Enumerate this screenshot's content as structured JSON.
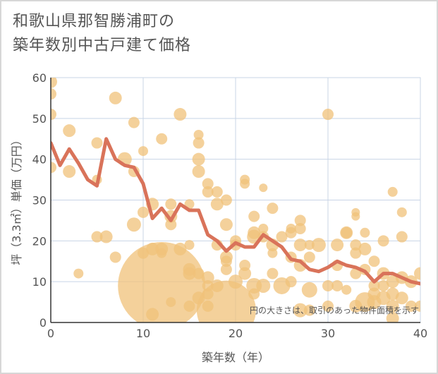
{
  "title": {
    "line1": "和歌山県那智勝浦町の",
    "line2": "築年数別中古戸建て価格"
  },
  "chart_data": {
    "type": "scatter",
    "title": "和歌山県那智勝浦町の築年数別中古戸建て価格",
    "xlabel": "築年数（年）",
    "ylabel": "坪（3.3㎡）単価（万円）",
    "xlim": [
      0,
      40
    ],
    "ylim": [
      0,
      60
    ],
    "xticks": [
      0,
      10,
      20,
      30,
      40
    ],
    "yticks": [
      0,
      10,
      20,
      30,
      40,
      50,
      60
    ],
    "grid": true,
    "annotation": "円の大きさは、取引のあった物件面積を示す",
    "colors": {
      "bubble": "#f0c27a",
      "line": "#d9735a",
      "grid": "#c8d4e6"
    },
    "bubbles": [
      {
        "x": 0,
        "y": 59,
        "s": 9
      },
      {
        "x": 0,
        "y": 56,
        "s": 8
      },
      {
        "x": 0,
        "y": 51,
        "s": 8
      },
      {
        "x": 0,
        "y": 38,
        "s": 8
      },
      {
        "x": 2,
        "y": 47,
        "s": 9
      },
      {
        "x": 2,
        "y": 37,
        "s": 9
      },
      {
        "x": 3,
        "y": 12,
        "s": 7
      },
      {
        "x": 5,
        "y": 44,
        "s": 8
      },
      {
        "x": 5,
        "y": 35,
        "s": 7
      },
      {
        "x": 5,
        "y": 21,
        "s": 8
      },
      {
        "x": 6,
        "y": 21,
        "s": 9
      },
      {
        "x": 7,
        "y": 55,
        "s": 9
      },
      {
        "x": 7,
        "y": 16,
        "s": 8
      },
      {
        "x": 8,
        "y": 40,
        "s": 10
      },
      {
        "x": 9,
        "y": 49,
        "s": 8
      },
      {
        "x": 9,
        "y": 37,
        "s": 8
      },
      {
        "x": 9,
        "y": 24,
        "s": 10
      },
      {
        "x": 10,
        "y": 42,
        "s": 7
      },
      {
        "x": 10,
        "y": 27,
        "s": 8
      },
      {
        "x": 10,
        "y": 17,
        "s": 8
      },
      {
        "x": 11,
        "y": 29,
        "s": 9
      },
      {
        "x": 11,
        "y": 18,
        "s": 9
      },
      {
        "x": 11,
        "y": 2,
        "s": 9
      },
      {
        "x": 12,
        "y": 45,
        "s": 8
      },
      {
        "x": 12,
        "y": 18,
        "s": 9
      },
      {
        "x": 12,
        "y": 17,
        "s": 7
      },
      {
        "x": 12,
        "y": 9,
        "s": 62
      },
      {
        "x": 13,
        "y": 29,
        "s": 8
      },
      {
        "x": 13,
        "y": 26,
        "s": 9
      },
      {
        "x": 13,
        "y": 24,
        "s": 8
      },
      {
        "x": 13,
        "y": 5,
        "s": 7
      },
      {
        "x": 14,
        "y": 51,
        "s": 9
      },
      {
        "x": 14,
        "y": 18,
        "s": 9
      },
      {
        "x": 15,
        "y": 29,
        "s": 7
      },
      {
        "x": 15,
        "y": 19,
        "s": 7
      },
      {
        "x": 15,
        "y": 13,
        "s": 9
      },
      {
        "x": 15,
        "y": 12,
        "s": 9
      },
      {
        "x": 15,
        "y": 4,
        "s": 8
      },
      {
        "x": 16,
        "y": 46,
        "s": 7
      },
      {
        "x": 16,
        "y": 44,
        "s": 8
      },
      {
        "x": 16,
        "y": 40,
        "s": 9
      },
      {
        "x": 16,
        "y": 37,
        "s": 9
      },
      {
        "x": 16,
        "y": 12,
        "s": 8
      },
      {
        "x": 16,
        "y": 6,
        "s": 9
      },
      {
        "x": 17,
        "y": 34,
        "s": 8
      },
      {
        "x": 17,
        "y": 32,
        "s": 8
      },
      {
        "x": 17,
        "y": 11,
        "s": 9
      },
      {
        "x": 17,
        "y": 9,
        "s": 8
      },
      {
        "x": 17,
        "y": 7,
        "s": 8
      },
      {
        "x": 17,
        "y": 4,
        "s": 8
      },
      {
        "x": 18,
        "y": 32,
        "s": 8
      },
      {
        "x": 18,
        "y": 29,
        "s": 9
      },
      {
        "x": 18,
        "y": 19,
        "s": 8
      },
      {
        "x": 18,
        "y": 9,
        "s": 9
      },
      {
        "x": 19,
        "y": 30,
        "s": 8
      },
      {
        "x": 19,
        "y": 24,
        "s": 9
      },
      {
        "x": 19,
        "y": 16,
        "s": 9
      },
      {
        "x": 19,
        "y": 15,
        "s": 8
      },
      {
        "x": 19,
        "y": 13,
        "s": 8
      },
      {
        "x": 19,
        "y": 3,
        "s": 42
      },
      {
        "x": 20,
        "y": 20,
        "s": 8
      },
      {
        "x": 20,
        "y": 19,
        "s": 8
      },
      {
        "x": 20,
        "y": 10,
        "s": 10
      },
      {
        "x": 21,
        "y": 35,
        "s": 7
      },
      {
        "x": 21,
        "y": 34,
        "s": 7
      },
      {
        "x": 21,
        "y": 14,
        "s": 8
      },
      {
        "x": 21,
        "y": 12,
        "s": 9
      },
      {
        "x": 22,
        "y": 26,
        "s": 8
      },
      {
        "x": 22,
        "y": 22,
        "s": 9
      },
      {
        "x": 22,
        "y": 21,
        "s": 10
      },
      {
        "x": 22,
        "y": 9,
        "s": 11
      },
      {
        "x": 22,
        "y": 7,
        "s": 8
      },
      {
        "x": 23,
        "y": 33,
        "s": 6
      },
      {
        "x": 23,
        "y": 23,
        "s": 7
      },
      {
        "x": 23,
        "y": 21,
        "s": 8
      },
      {
        "x": 23,
        "y": 9,
        "s": 10
      },
      {
        "x": 24,
        "y": 28,
        "s": 8
      },
      {
        "x": 24,
        "y": 19,
        "s": 9
      },
      {
        "x": 24,
        "y": 17,
        "s": 7
      },
      {
        "x": 24,
        "y": 12,
        "s": 8
      },
      {
        "x": 25,
        "y": 21,
        "s": 8
      },
      {
        "x": 25,
        "y": 9,
        "s": 12
      },
      {
        "x": 26,
        "y": 23,
        "s": 7
      },
      {
        "x": 26,
        "y": 22,
        "s": 8
      },
      {
        "x": 26,
        "y": 16,
        "s": 8
      },
      {
        "x": 26,
        "y": 10,
        "s": 8
      },
      {
        "x": 27,
        "y": 25,
        "s": 8
      },
      {
        "x": 27,
        "y": 23,
        "s": 8
      },
      {
        "x": 27,
        "y": 19,
        "s": 9
      },
      {
        "x": 27,
        "y": 14,
        "s": 9
      },
      {
        "x": 27,
        "y": 3,
        "s": 10
      },
      {
        "x": 28,
        "y": 19,
        "s": 7
      },
      {
        "x": 28,
        "y": 16,
        "s": 8
      },
      {
        "x": 28,
        "y": 8,
        "s": 11
      },
      {
        "x": 28,
        "y": 3,
        "s": 8
      },
      {
        "x": 29,
        "y": 19,
        "s": 10
      },
      {
        "x": 30,
        "y": 51,
        "s": 8
      },
      {
        "x": 30,
        "y": 9,
        "s": 8
      },
      {
        "x": 30,
        "y": 4,
        "s": 8
      },
      {
        "x": 31,
        "y": 19,
        "s": 9
      },
      {
        "x": 31,
        "y": 14,
        "s": 8
      },
      {
        "x": 31,
        "y": 9,
        "s": 8
      },
      {
        "x": 32,
        "y": 22,
        "s": 9
      },
      {
        "x": 32,
        "y": 22,
        "s": 8
      },
      {
        "x": 32,
        "y": 8,
        "s": 7
      },
      {
        "x": 33,
        "y": 27,
        "s": 6
      },
      {
        "x": 33,
        "y": 26,
        "s": 6
      },
      {
        "x": 33,
        "y": 19,
        "s": 8
      },
      {
        "x": 33,
        "y": 17,
        "s": 8
      },
      {
        "x": 33,
        "y": 12,
        "s": 8
      },
      {
        "x": 33,
        "y": 4,
        "s": 9
      },
      {
        "x": 34,
        "y": 22,
        "s": 7
      },
      {
        "x": 34,
        "y": 18,
        "s": 9
      },
      {
        "x": 34,
        "y": 13,
        "s": 8
      },
      {
        "x": 34,
        "y": 5,
        "s": 14
      },
      {
        "x": 35,
        "y": 15,
        "s": 8
      },
      {
        "x": 35,
        "y": 9,
        "s": 8
      },
      {
        "x": 35,
        "y": 7,
        "s": 9
      },
      {
        "x": 35,
        "y": 5,
        "s": 10
      },
      {
        "x": 36,
        "y": 20,
        "s": 8
      },
      {
        "x": 36,
        "y": 12,
        "s": 9
      },
      {
        "x": 36,
        "y": 9,
        "s": 8
      },
      {
        "x": 36,
        "y": 6,
        "s": 10
      },
      {
        "x": 37,
        "y": 32,
        "s": 7
      },
      {
        "x": 37,
        "y": 10,
        "s": 9
      },
      {
        "x": 37,
        "y": 7,
        "s": 9
      },
      {
        "x": 37,
        "y": 4,
        "s": 9
      },
      {
        "x": 37,
        "y": 1,
        "s": 9
      },
      {
        "x": 38,
        "y": 27,
        "s": 7
      },
      {
        "x": 38,
        "y": 21,
        "s": 8
      },
      {
        "x": 38,
        "y": 11,
        "s": 9
      },
      {
        "x": 38,
        "y": 6,
        "s": 9
      },
      {
        "x": 39,
        "y": 10,
        "s": 9
      },
      {
        "x": 39,
        "y": 4,
        "s": 8
      },
      {
        "x": 40,
        "y": 12,
        "s": 9
      },
      {
        "x": 40,
        "y": 4,
        "s": 8
      }
    ],
    "series": [
      {
        "name": "average",
        "x": [
          0,
          1,
          2,
          3,
          4,
          5,
          6,
          7,
          8,
          9,
          10,
          11,
          12,
          13,
          14,
          15,
          16,
          17,
          18,
          19,
          20,
          21,
          22,
          23,
          24,
          25,
          26,
          27,
          28,
          29,
          30,
          31,
          32,
          33,
          34,
          35,
          36,
          37,
          38,
          39,
          40
        ],
        "values": [
          44,
          38.5,
          42.5,
          39,
          35,
          33.5,
          45,
          40,
          38.5,
          38,
          34,
          25.5,
          28,
          25,
          29,
          27.5,
          27.5,
          21.5,
          20,
          17.5,
          19.5,
          18.5,
          18.5,
          21.5,
          20,
          18.5,
          15.5,
          15,
          13,
          12.5,
          13.5,
          15,
          14,
          13.5,
          12.5,
          10,
          12,
          12,
          11,
          10,
          9.5
        ]
      }
    ]
  }
}
